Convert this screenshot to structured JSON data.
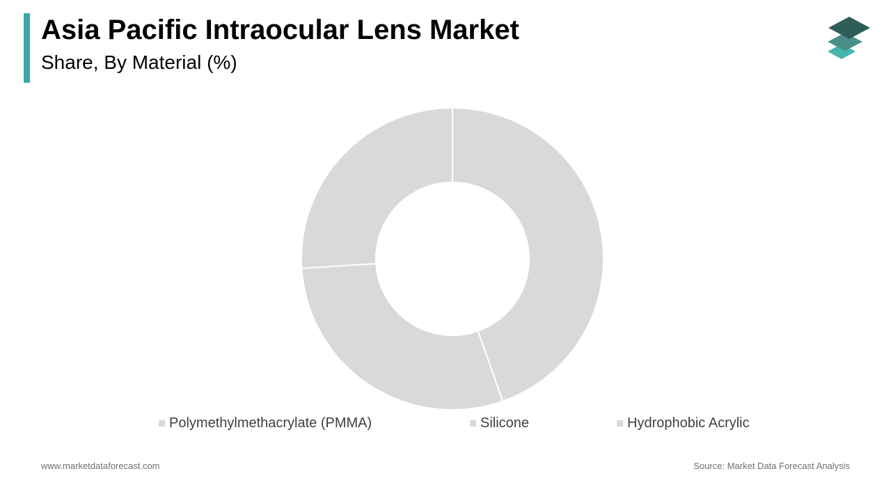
{
  "header": {
    "title": "Asia Pacific Intraocular Lens Market",
    "subtitle": "Share, By Material (%)"
  },
  "footer": {
    "website": "www.marketdataforecast.com",
    "source": "Source: Market Data Forecast Analysis"
  },
  "colors": {
    "accent": "#3fa8a3",
    "slice_fill": "#d9d9d9",
    "slice_border": "#ffffff",
    "logo_dark": "#2e5e58",
    "logo_mid": "#4a8f87",
    "logo_light": "#45b5ae"
  },
  "logo": {
    "icon": "stacked-layers-icon"
  },
  "chart_data": {
    "type": "pie",
    "donut": true,
    "categories": [
      "Polymethylmethacrylate (PMMA)",
      "Silicone",
      "Hydrophobic Acrylic"
    ],
    "values": [
      44.6,
      29.4,
      26.0
    ],
    "start_angle_deg": 0,
    "direction": "clockwise",
    "legend_position": "bottom",
    "data_labels": false
  }
}
